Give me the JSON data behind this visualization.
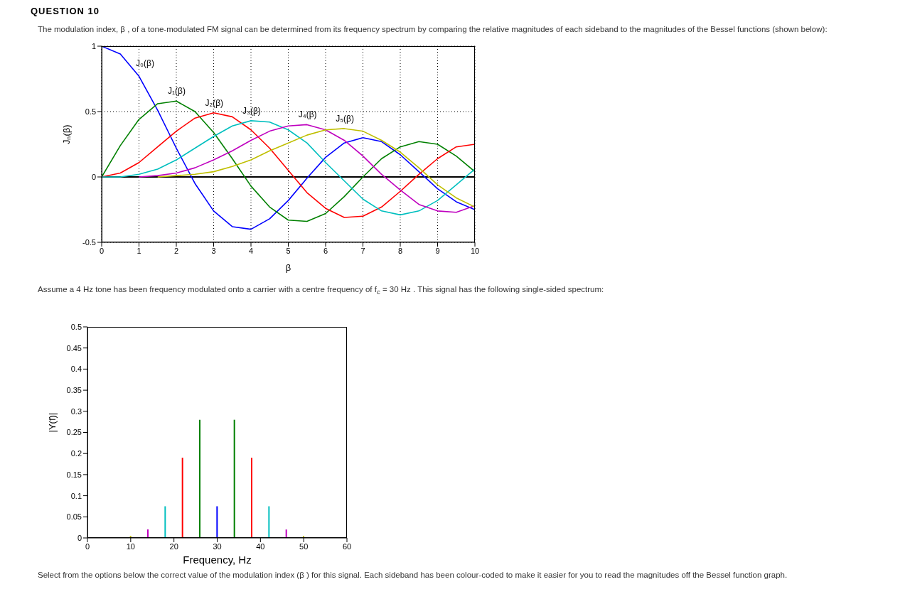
{
  "chart_data": [
    {
      "type": "line",
      "title": "QUESTION 10",
      "subtitle": "The modulation index, β , of a tone-modulated FM signal can be determined from its frequency spectrum by comparing the relative magnitudes of each sideband to the magnitudes of the Bessel functions (shown below):",
      "xlabel": "β",
      "ylabel": "Jₙ(β)",
      "x": [
        0,
        0.5,
        1,
        1.5,
        2,
        2.5,
        3,
        3.5,
        4,
        4.5,
        5,
        5.5,
        6,
        6.5,
        7,
        7.5,
        8,
        8.5,
        9,
        9.5,
        10
      ],
      "series": [
        {
          "name": "J₀(β)",
          "color": "#0000ff",
          "values": [
            1,
            0.94,
            0.77,
            0.51,
            0.22,
            -0.05,
            -0.26,
            -0.38,
            -0.4,
            -0.32,
            -0.18,
            -0.01,
            0.15,
            0.26,
            0.3,
            0.27,
            0.17,
            0.04,
            -0.09,
            -0.19,
            -0.25
          ]
        },
        {
          "name": "J₁(β)",
          "color": "#008000",
          "values": [
            0,
            0.24,
            0.44,
            0.56,
            0.58,
            0.5,
            0.34,
            0.14,
            -0.07,
            -0.23,
            -0.33,
            -0.34,
            -0.28,
            -0.15,
            0,
            0.14,
            0.23,
            0.27,
            0.25,
            0.16,
            0.04
          ]
        },
        {
          "name": "J₂(β)",
          "color": "#ff0000",
          "values": [
            0,
            0.03,
            0.11,
            0.23,
            0.35,
            0.45,
            0.49,
            0.46,
            0.36,
            0.22,
            0.05,
            -0.12,
            -0.24,
            -0.31,
            -0.3,
            -0.23,
            -0.11,
            0.02,
            0.14,
            0.23,
            0.25
          ]
        },
        {
          "name": "J₃(β)",
          "color": "#00bfbf",
          "values": [
            0,
            0,
            0.02,
            0.06,
            0.13,
            0.22,
            0.31,
            0.39,
            0.43,
            0.42,
            0.36,
            0.26,
            0.11,
            -0.03,
            -0.17,
            -0.26,
            -0.29,
            -0.26,
            -0.18,
            -0.06,
            0.06
          ]
        },
        {
          "name": "J₄(β)",
          "color": "#bf00bf",
          "values": [
            null,
            null,
            0,
            0.01,
            0.03,
            0.07,
            0.13,
            0.2,
            0.28,
            0.35,
            0.39,
            0.4,
            0.36,
            0.28,
            0.16,
            0.02,
            -0.1,
            -0.21,
            -0.26,
            -0.27,
            -0.22
          ]
        },
        {
          "name": "J₅(β)",
          "color": "#bfbf00",
          "values": [
            null,
            null,
            null,
            0,
            0.01,
            0.02,
            0.04,
            0.08,
            0.13,
            0.2,
            0.26,
            0.32,
            0.36,
            0.37,
            0.35,
            0.28,
            0.19,
            0.07,
            -0.06,
            -0.16,
            -0.23
          ]
        }
      ],
      "xlim": [
        0,
        10
      ],
      "xticks": [
        0,
        1,
        2,
        3,
        4,
        5,
        6,
        7,
        8,
        9,
        10
      ],
      "ylim": [
        -0.5,
        1
      ],
      "yticks": [
        -0.5,
        0,
        0.5,
        1
      ],
      "grid": true,
      "ref_lines": [
        {
          "axis": "y",
          "value": 0,
          "color": "#000000"
        }
      ]
    },
    {
      "type": "bar",
      "subtitle": "Assume a 4 Hz tone has been frequency modulated onto a carrier with a centre frequency of f$_{c}$ = 30 Hz . This signal has the following single-sided spectrum:",
      "xlabel": "Frequency, Hz",
      "ylabel": "|Y(f)|",
      "x": [
        10,
        14,
        18,
        22,
        26,
        30,
        34,
        38,
        42,
        46,
        50
      ],
      "values": [
        0.005,
        0.02,
        0.075,
        0.19,
        0.28,
        0.075,
        0.28,
        0.19,
        0.075,
        0.02,
        0.005
      ],
      "colors": [
        "#bfbf00",
        "#bf00bf",
        "#00bfbf",
        "#ff0000",
        "#008000",
        "#0000ff",
        "#008000",
        "#ff0000",
        "#00bfbf",
        "#bf00bf",
        "#bfbf00"
      ],
      "xlim": [
        0,
        60
      ],
      "xticks": [
        0,
        10,
        20,
        30,
        40,
        50,
        60
      ],
      "ylim": [
        0,
        0.5
      ],
      "yticks": [
        0,
        0.05,
        0.1,
        0.15,
        0.2,
        0.25,
        0.3,
        0.35,
        0.4,
        0.45,
        0.5
      ],
      "annotations": [
        "Select from the options below the correct value of the modulation index (β ) for this signal. Each sideband has been colour-coded to make it easier for you to read the magnitudes off the Bessel function graph."
      ]
    }
  ]
}
